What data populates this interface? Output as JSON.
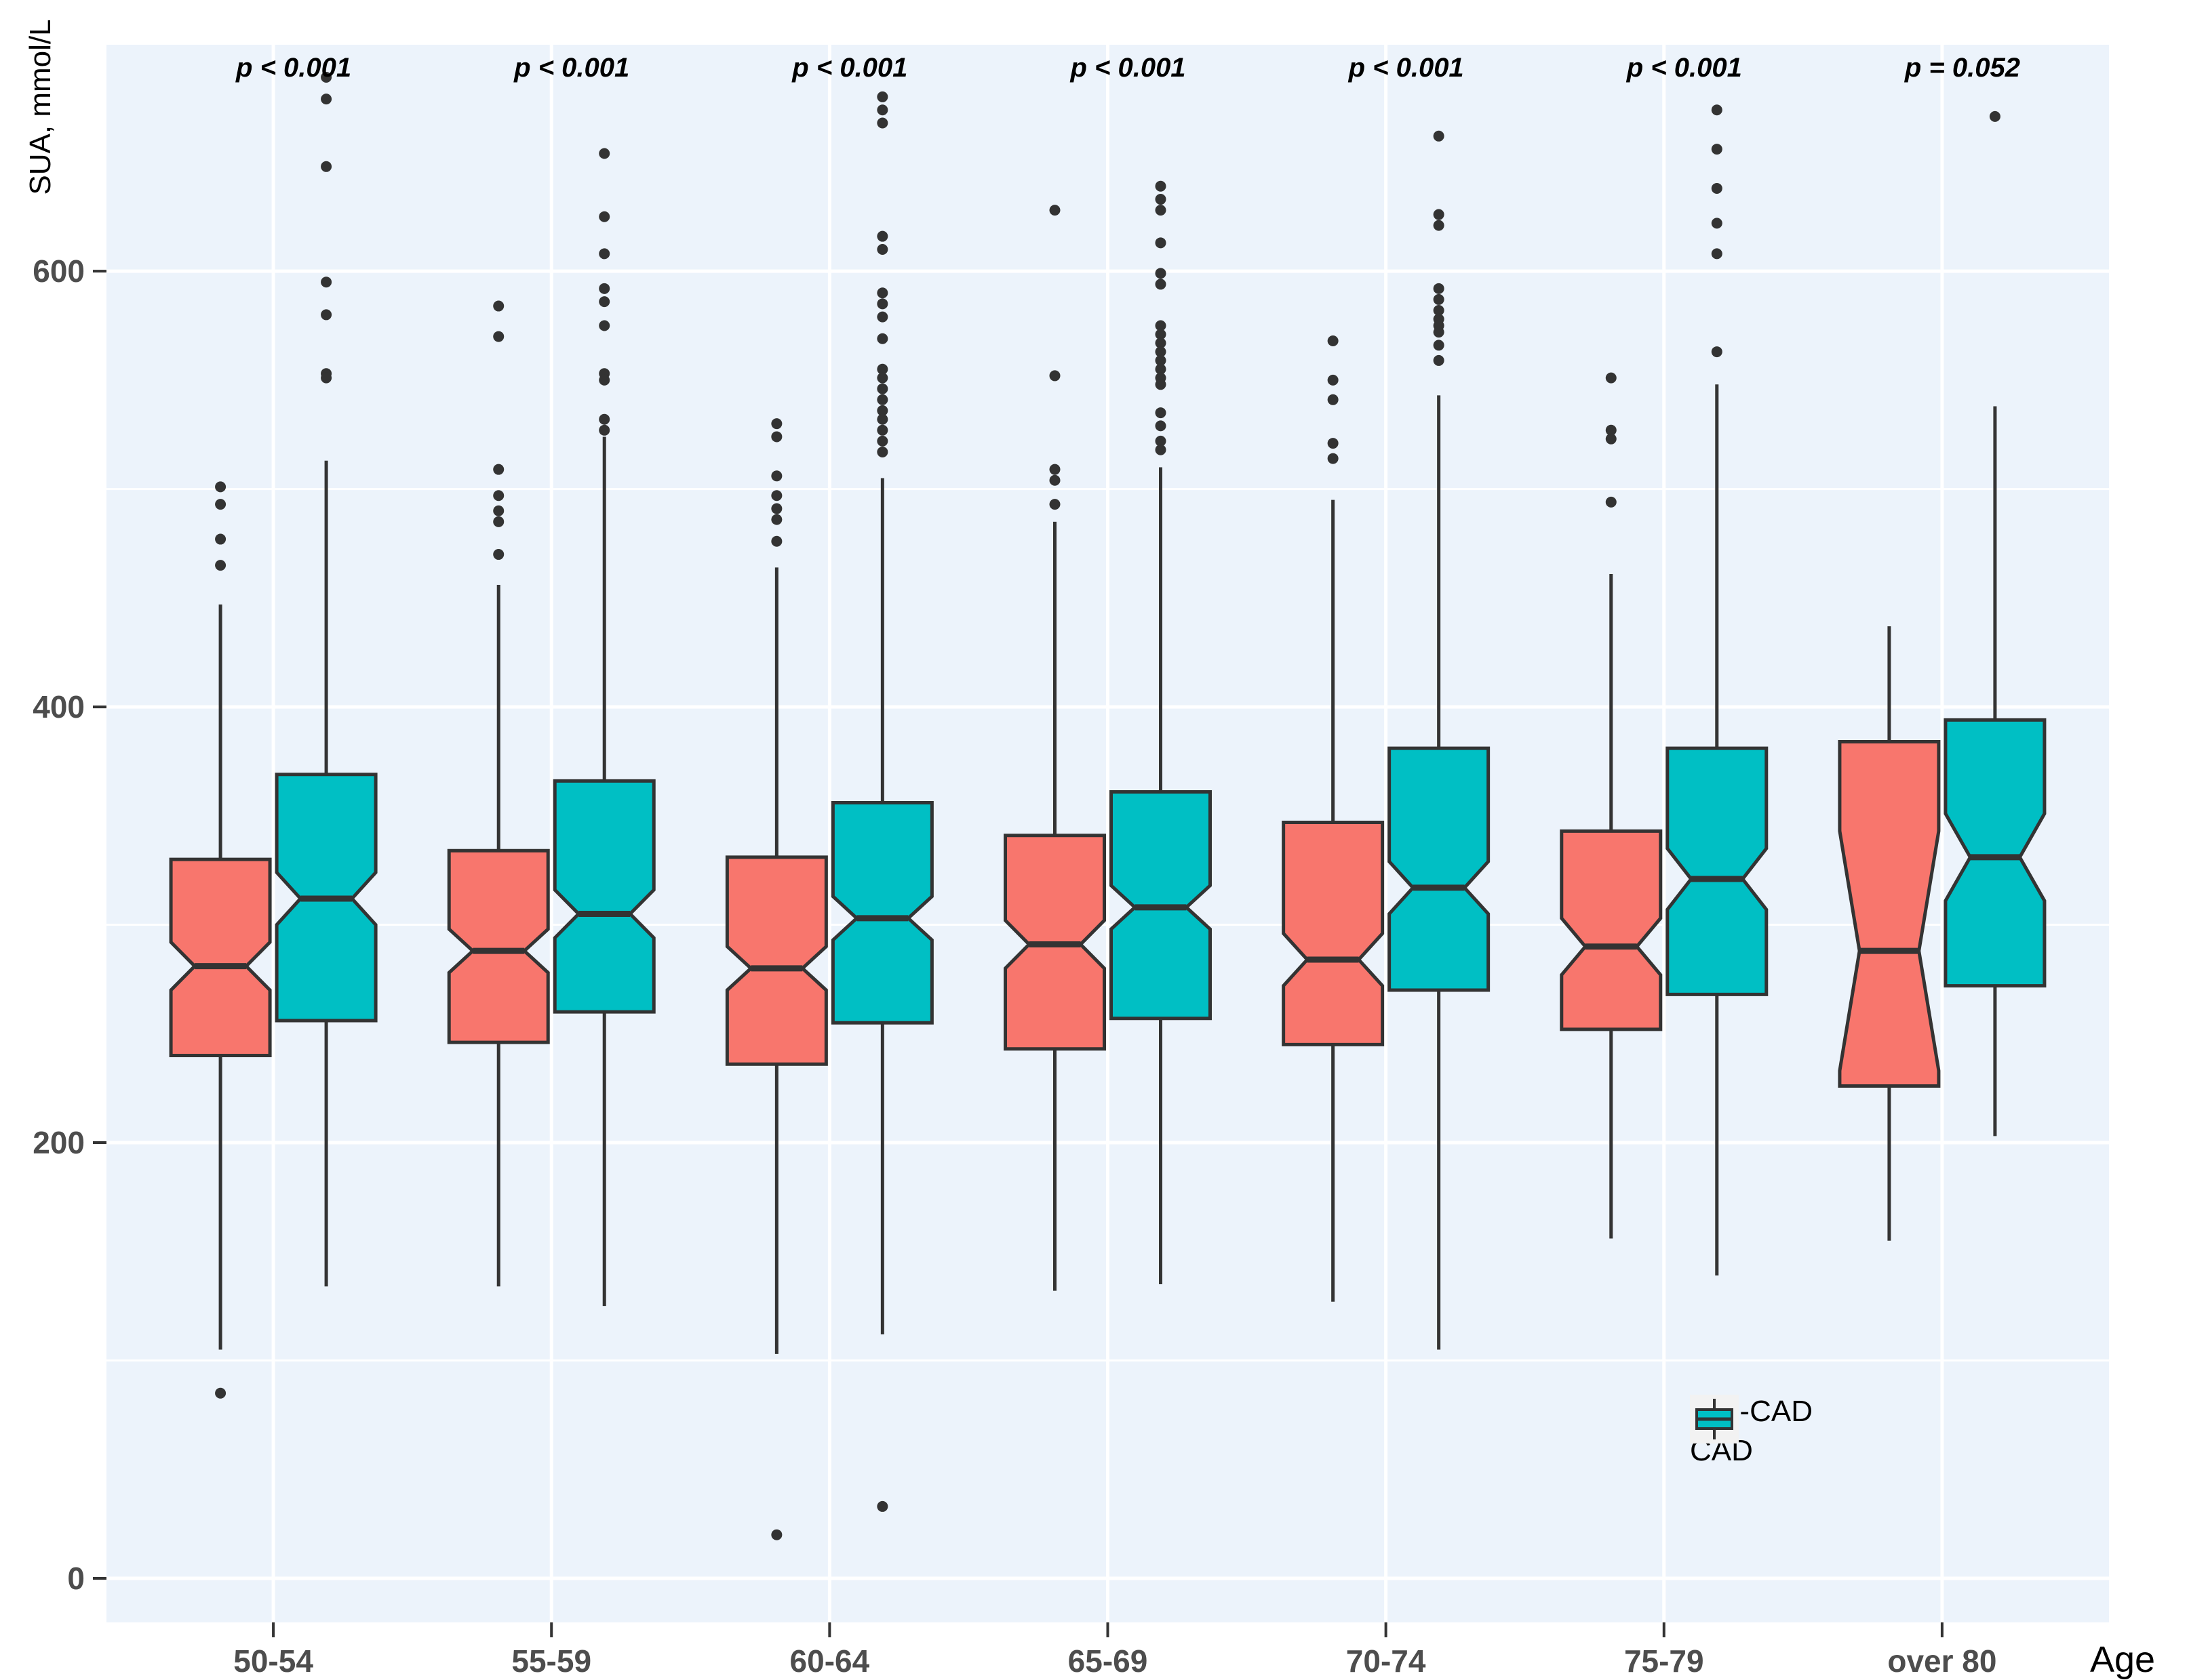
{
  "colors": {
    "non_cad": "#F8766D",
    "cad": "#00BFC4",
    "stroke": "#333333",
    "panel_bg": "#ECF3FB",
    "grid": "#FFFFFF",
    "tick_text": "#4d4d4d",
    "legend_key_bg": "#F2F2F2"
  },
  "y_axis": {
    "label": "SUA, mmol/L",
    "major_ticks": [
      0,
      200,
      400,
      600
    ],
    "minor_gridlines": [
      100,
      300,
      500
    ],
    "range": [
      -20,
      704
    ]
  },
  "x_axis": {
    "label": "Age"
  },
  "annotations": {
    "p_values": [
      "p < 0.001",
      "p < 0.001",
      "p < 0.001",
      "p < 0.001",
      "p < 0.001",
      "p < 0.001",
      "p = 0.052"
    ]
  },
  "legend": {
    "items": [
      {
        "label": "non-CAD",
        "color_key": "non_cad"
      },
      {
        "label": "CAD",
        "color_key": "cad"
      }
    ]
  },
  "chart_data": {
    "type": "boxplot",
    "title": "",
    "xlabel": "Age",
    "ylabel": "SUA, mmol/L",
    "ylim": [
      -20,
      704
    ],
    "grid": "white major+minor horizontal, major vertical per category",
    "legend_position": "bottom-right inside plot",
    "categories": [
      "50-54",
      "55-59",
      "60-64",
      "65-69",
      "70-74",
      "75-79",
      "over 80"
    ],
    "p_values": [
      "p < 0.001",
      "p < 0.001",
      "p < 0.001",
      "p < 0.001",
      "p < 0.001",
      "p < 0.001",
      "p = 0.052"
    ],
    "series": [
      {
        "name": "non-CAD",
        "color_key": "non_cad",
        "boxes": [
          {
            "category": "50-54",
            "whisker_low": 105,
            "q1": 240,
            "median": 281,
            "q3": 330,
            "whisker_high": 447,
            "notch": 11,
            "waist": 0.52,
            "outliers_high": [
              501,
              493,
              477,
              465
            ],
            "outliers_low": [
              85
            ]
          },
          {
            "category": "55-59",
            "whisker_low": 134,
            "q1": 246,
            "median": 288,
            "q3": 334,
            "whisker_high": 456,
            "notch": 10,
            "waist": 0.52,
            "outliers_high": [
              584,
              570,
              509,
              497,
              490,
              485,
              470
            ],
            "outliers_low": []
          },
          {
            "category": "60-64",
            "whisker_low": 103,
            "q1": 236,
            "median": 280,
            "q3": 331,
            "whisker_high": 464,
            "notch": 10,
            "waist": 0.52,
            "outliers_high": [
              530,
              524,
              506,
              497,
              491,
              486,
              476
            ],
            "outliers_low": [
              20
            ]
          },
          {
            "category": "65-69",
            "whisker_low": 132,
            "q1": 243,
            "median": 291,
            "q3": 341,
            "whisker_high": 485,
            "notch": 11,
            "waist": 0.52,
            "outliers_high": [
              628,
              552,
              509,
              504,
              493
            ],
            "outliers_low": []
          },
          {
            "category": "70-74",
            "whisker_low": 127,
            "q1": 245,
            "median": 284,
            "q3": 347,
            "whisker_high": 495,
            "notch": 12,
            "waist": 0.52,
            "outliers_high": [
              568,
              550,
              541,
              521,
              514
            ],
            "outliers_low": []
          },
          {
            "category": "75-79",
            "whisker_low": 156,
            "q1": 252,
            "median": 290,
            "q3": 343,
            "whisker_high": 461,
            "notch": 13,
            "waist": 0.52,
            "outliers_high": [
              551,
              527,
              523,
              494
            ],
            "outliers_low": []
          },
          {
            "category": "over 80",
            "whisker_low": 155,
            "q1": 226,
            "median": 288,
            "q3": 384,
            "whisker_high": 437,
            "notch": 55,
            "waist": 0.6,
            "outliers_high": [],
            "outliers_low": []
          }
        ]
      },
      {
        "name": "CAD",
        "color_key": "cad",
        "boxes": [
          {
            "category": "50-54",
            "whisker_low": 134,
            "q1": 256,
            "median": 312,
            "q3": 369,
            "whisker_high": 513,
            "notch": 12,
            "waist": 0.52,
            "outliers_high": [
              689,
              679,
              648,
              595,
              580,
              553,
              551
            ],
            "outliers_low": []
          },
          {
            "category": "55-59",
            "whisker_low": 125,
            "q1": 260,
            "median": 305,
            "q3": 366,
            "whisker_high": 524,
            "notch": 11,
            "waist": 0.52,
            "outliers_high": [
              654,
              625,
              608,
              592,
              586,
              575,
              553,
              550,
              532,
              527
            ],
            "outliers_low": []
          },
          {
            "category": "60-64",
            "whisker_low": 112,
            "q1": 255,
            "median": 303,
            "q3": 356,
            "whisker_high": 505,
            "notch": 10,
            "waist": 0.52,
            "outliers_high": [
              680,
              674,
              668,
              616,
              610,
              590,
              585,
              579,
              569,
              555,
              551,
              546,
              541,
              536,
              532,
              527,
              522,
              517
            ],
            "outliers_low": [
              33
            ]
          },
          {
            "category": "65-69",
            "whisker_low": 135,
            "q1": 257,
            "median": 308,
            "q3": 361,
            "whisker_high": 510,
            "notch": 10,
            "waist": 0.52,
            "outliers_high": [
              639,
              633,
              628,
              613,
              599,
              594,
              575,
              571,
              567,
              563,
              559,
              555,
              551,
              548,
              535,
              529,
              522,
              518
            ],
            "outliers_low": []
          },
          {
            "category": "70-74",
            "whisker_low": 105,
            "q1": 270,
            "median": 317,
            "q3": 381,
            "whisker_high": 543,
            "notch": 12,
            "waist": 0.52,
            "outliers_high": [
              662,
              626,
              621,
              592,
              587,
              582,
              578,
              575,
              572,
              566,
              559
            ],
            "outliers_low": []
          },
          {
            "category": "75-79",
            "whisker_low": 139,
            "q1": 268,
            "median": 321,
            "q3": 381,
            "whisker_high": 548,
            "notch": 14,
            "waist": 0.52,
            "outliers_high": [
              674,
              656,
              638,
              622,
              608,
              563
            ],
            "outliers_low": []
          },
          {
            "category": "over 80",
            "whisker_low": 203,
            "q1": 272,
            "median": 331,
            "q3": 394,
            "whisker_high": 538,
            "notch": 20,
            "waist": 0.5,
            "outliers_high": [
              671
            ],
            "outliers_low": []
          }
        ]
      }
    ]
  }
}
